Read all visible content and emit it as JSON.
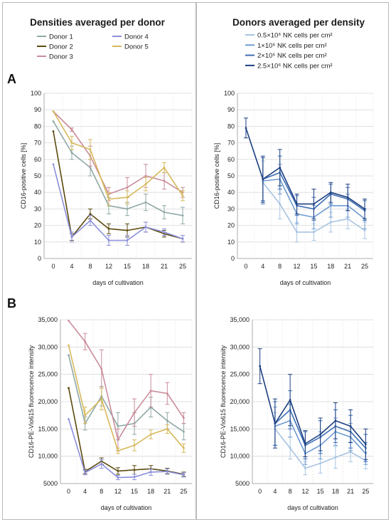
{
  "titles": {
    "left": "Densities averaged per donor",
    "right": "Donors averaged per density"
  },
  "panel_letters": [
    "A",
    "B"
  ],
  "legend_left": [
    {
      "label": "Donor 1",
      "color": "#8ea8a6"
    },
    {
      "label": "Donor 2",
      "color": "#5c4a0e"
    },
    {
      "label": "Donor 3",
      "color": "#c98c9a"
    },
    {
      "label": "Donor 4",
      "color": "#8b8fdc"
    },
    {
      "label": "Donor 5",
      "color": "#d6b85b"
    }
  ],
  "legend_right": [
    {
      "label": "0.5×10⁶ NK cells per cm²",
      "color": "#a8c4e2"
    },
    {
      "label": "1×10⁶ NK cells per cm²",
      "color": "#6f9bd0"
    },
    {
      "label": "2×10⁶ NK cells per cm²",
      "color": "#3d6fb4"
    },
    {
      "label": "2.5×10⁶ NK cells per cm²",
      "color": "#1c3f80"
    }
  ],
  "chart_data": [
    {
      "id": "A-left",
      "type": "line",
      "x": [
        0,
        4,
        8,
        12,
        15,
        18,
        21,
        25
      ],
      "xlabel": "days of cultivation",
      "ylabel": "CD16-positive cells [%]",
      "ylim": [
        0,
        100
      ],
      "yticks": [
        0,
        10,
        20,
        30,
        40,
        50,
        60,
        70,
        80,
        90,
        100
      ],
      "ytick_labels": [
        "0",
        "10",
        "20",
        "30",
        "40",
        "50",
        "60",
        "70",
        "80",
        "90",
        "100"
      ],
      "grid": true,
      "series": [
        {
          "name": "Donor 1",
          "color": "#8ea8a6",
          "values": [
            83,
            64,
            55,
            32,
            30,
            34,
            28,
            26
          ],
          "errors": [
            0,
            4,
            5,
            5,
            4,
            5,
            4,
            5
          ]
        },
        {
          "name": "Donor 2",
          "color": "#5c4a0e",
          "values": [
            77,
            13,
            27,
            18,
            17,
            19,
            15,
            12
          ],
          "errors": [
            0,
            2,
            3,
            3,
            4,
            3,
            2,
            2
          ]
        },
        {
          "name": "Donor 3",
          "color": "#c98c9a",
          "values": [
            89,
            78,
            62,
            39,
            43,
            50,
            47,
            40
          ],
          "errors": [
            0,
            1,
            6,
            4,
            6,
            7,
            5,
            3
          ]
        },
        {
          "name": "Donor 4",
          "color": "#8b8fdc",
          "values": [
            57,
            13,
            23,
            11,
            11,
            19,
            16,
            12
          ],
          "errors": [
            0,
            3,
            3,
            3,
            3,
            3,
            2,
            2
          ]
        },
        {
          "name": "Donor 5",
          "color": "#d6b85b",
          "values": [
            89,
            70,
            66,
            36,
            37,
            45,
            55,
            38
          ],
          "errors": [
            0,
            4,
            6,
            4,
            4,
            4,
            3,
            3
          ]
        }
      ]
    },
    {
      "id": "A-right",
      "type": "line",
      "x": [
        0,
        4,
        8,
        12,
        15,
        18,
        21,
        25
      ],
      "xlabel": "days of cultivation",
      "ylabel": "CD16-positive cells [%]",
      "ylim": [
        0,
        100
      ],
      "yticks": [
        0,
        10,
        20,
        30,
        40,
        50,
        60,
        70,
        80,
        90,
        100
      ],
      "ytick_labels": [
        "0",
        "10",
        "20",
        "30",
        "40",
        "50",
        "60",
        "70",
        "80",
        "90",
        "100"
      ],
      "grid": true,
      "series": [
        {
          "name": "0.5×10⁶ NK cells per cm²",
          "color": "#a8c4e2",
          "values": [
            null,
            46,
            33,
            16,
            16,
            22,
            24,
            17
          ],
          "errors": [
            0,
            13,
            9,
            6,
            5,
            6,
            6,
            5
          ]
        },
        {
          "name": "1×10⁶ NK cells per cm²",
          "color": "#6f9bd0",
          "values": [
            null,
            47,
            48,
            27,
            25,
            32,
            32,
            24
          ],
          "errors": [
            0,
            14,
            9,
            6,
            7,
            7,
            7,
            6
          ]
        },
        {
          "name": "2×10⁶ NK cells per cm²",
          "color": "#3d6fb4",
          "values": [
            null,
            48,
            52,
            32,
            30,
            39,
            36,
            29
          ],
          "errors": [
            0,
            13,
            10,
            6,
            7,
            6,
            7,
            6
          ]
        },
        {
          "name": "2.5×10⁶ NK cells per cm²",
          "color": "#1c3f80",
          "values": [
            79,
            48,
            55,
            33,
            33,
            40,
            37,
            30
          ],
          "errors": [
            6,
            14,
            11,
            6,
            9,
            6,
            8,
            6
          ]
        }
      ]
    },
    {
      "id": "B-left",
      "type": "line",
      "x": [
        0,
        4,
        8,
        12,
        15,
        18,
        21,
        25
      ],
      "xlabel": "days of cultivation",
      "ylabel": "CD16-PE-Vio615  fluorescence intensity",
      "ylim": [
        5000,
        35000
      ],
      "yticks": [
        5000,
        10000,
        15000,
        20000,
        25000,
        30000,
        35000
      ],
      "ytick_labels": [
        "5000",
        "10,000",
        "15,000",
        "20,000",
        "25,000",
        "30,000",
        "35,000"
      ],
      "grid": true,
      "series": [
        {
          "name": "Donor 1",
          "color": "#8ea8a6",
          "values": [
            28500,
            16000,
            21000,
            15500,
            16000,
            19000,
            16500,
            14500
          ],
          "errors": [
            0,
            1200,
            1800,
            2500,
            2000,
            1800,
            1500,
            1500
          ]
        },
        {
          "name": "Donor 2",
          "color": "#5c4a0e",
          "values": [
            22500,
            7200,
            9100,
            7300,
            7500,
            7700,
            7300,
            6700
          ],
          "errors": [
            0,
            400,
            600,
            600,
            800,
            600,
            500,
            400
          ]
        },
        {
          "name": "Donor 3",
          "color": "#c98c9a",
          "values": [
            34800,
            31000,
            26000,
            13000,
            18000,
            22000,
            21500,
            17000
          ],
          "errors": [
            0,
            1500,
            3500,
            2000,
            2500,
            3000,
            2000,
            1000
          ]
        },
        {
          "name": "Donor 4",
          "color": "#8b8fdc",
          "values": [
            16800,
            7000,
            8600,
            6100,
            6200,
            7100,
            7200,
            6600
          ],
          "errors": [
            0,
            400,
            800,
            400,
            500,
            600,
            500,
            400
          ]
        },
        {
          "name": "Donor 5",
          "color": "#d6b85b",
          "values": [
            30300,
            17500,
            20500,
            11000,
            12000,
            14000,
            15000,
            11500
          ],
          "errors": [
            0,
            1500,
            2000,
            500,
            1000,
            800,
            800,
            800
          ]
        }
      ]
    },
    {
      "id": "B-right",
      "type": "line",
      "x": [
        0,
        4,
        8,
        12,
        15,
        18,
        21,
        25
      ],
      "xlabel": "days of cultivation",
      "ylabel": "CD16-PE-Vio615  fluorescence intensity",
      "ylim": [
        5000,
        35000
      ],
      "yticks": [
        5000,
        10000,
        15000,
        20000,
        25000,
        30000,
        35000
      ],
      "ytick_labels": [
        "5000",
        "10,000",
        "15,000",
        "20,000",
        "25,000",
        "30,000",
        "35,000"
      ],
      "grid": true,
      "series": [
        {
          "name": "0.5×10⁶ NK cells per cm²",
          "color": "#a8c4e2",
          "values": [
            null,
            15000,
            11500,
            7800,
            8700,
            9800,
            10800,
            9200
          ],
          "errors": [
            0,
            3000,
            2000,
            1200,
            1800,
            2000,
            1800,
            1500
          ]
        },
        {
          "name": "1×10⁶ NK cells per cm²",
          "color": "#6f9bd0",
          "values": [
            null,
            15500,
            16500,
            10500,
            12000,
            14500,
            13500,
            10500
          ],
          "errors": [
            0,
            3500,
            3000,
            2000,
            2500,
            2500,
            2500,
            2000
          ]
        },
        {
          "name": "2×10⁶ NK cells per cm²",
          "color": "#3d6fb4",
          "values": [
            null,
            16000,
            18500,
            12000,
            13500,
            15500,
            14500,
            11500
          ],
          "errors": [
            0,
            4000,
            3500,
            2500,
            3000,
            3000,
            3000,
            2500
          ]
        },
        {
          "name": "2.5×10⁶ NK cells per cm²",
          "color": "#1c3f80",
          "values": [
            26500,
            16000,
            20300,
            12300,
            14000,
            16500,
            15500,
            12200
          ],
          "errors": [
            3200,
            4500,
            4700,
            2400,
            3000,
            3300,
            3000,
            2800
          ]
        }
      ]
    }
  ]
}
